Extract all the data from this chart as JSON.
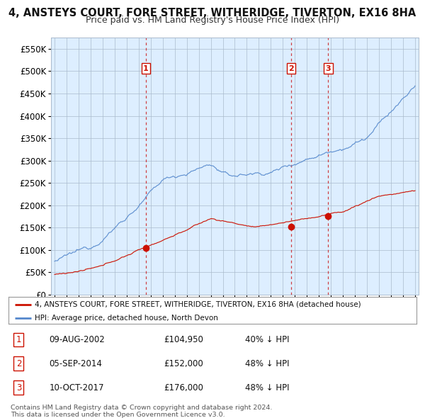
{
  "title": "4, ANSTEYS COURT, FORE STREET, WITHERIDGE, TIVERTON, EX16 8HA",
  "subtitle": "Price paid vs. HM Land Registry's House Price Index (HPI)",
  "ylim": [
    0,
    575000
  ],
  "yticks": [
    0,
    50000,
    100000,
    150000,
    200000,
    250000,
    300000,
    350000,
    400000,
    450000,
    500000,
    550000
  ],
  "xlim_start": 1994.7,
  "xlim_end": 2025.3,
  "fig_bg": "#ffffff",
  "plot_bg": "#ddeeff",
  "hpi_color": "#5588cc",
  "price_color": "#cc1100",
  "vline_color": "#cc2222",
  "grid_color": "#aabbcc",
  "sales": [
    {
      "date_num": 2002.6,
      "price": 104950,
      "label": "1"
    },
    {
      "date_num": 2014.68,
      "price": 152000,
      "label": "2"
    },
    {
      "date_num": 2017.78,
      "price": 176000,
      "label": "3"
    }
  ],
  "legend_label_red": "4, ANSTEYS COURT, FORE STREET, WITHERIDGE, TIVERTON, EX16 8HA (detached house)",
  "legend_label_blue": "HPI: Average price, detached house, North Devon",
  "table_rows": [
    {
      "num": "1",
      "date": "09-AUG-2002",
      "price": "£104,950",
      "change": "40% ↓ HPI"
    },
    {
      "num": "2",
      "date": "05-SEP-2014",
      "price": "£152,000",
      "change": "48% ↓ HPI"
    },
    {
      "num": "3",
      "date": "10-OCT-2017",
      "price": "£176,000",
      "change": "48% ↓ HPI"
    }
  ],
  "footer": "Contains HM Land Registry data © Crown copyright and database right 2024.\nThis data is licensed under the Open Government Licence v3.0."
}
